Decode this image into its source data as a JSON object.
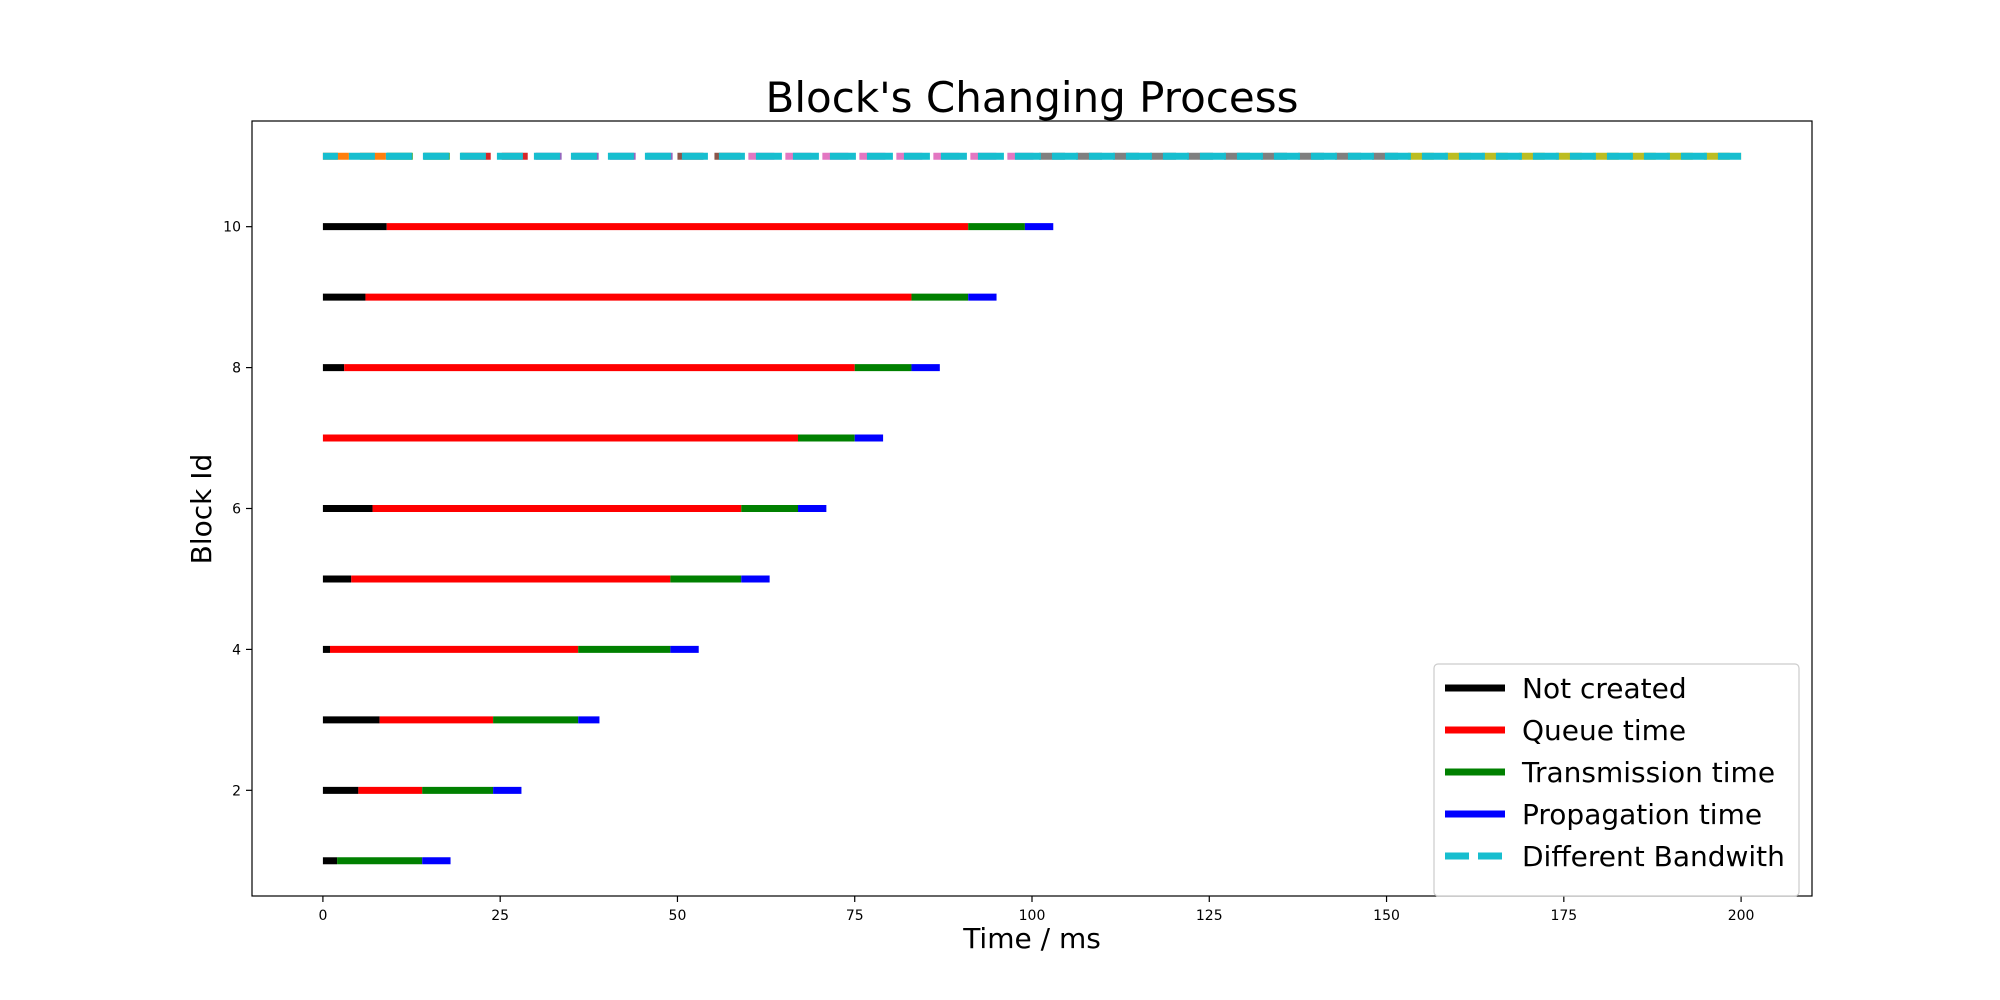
{
  "chart_data": {
    "type": "bar",
    "title": "Block's Changing Process",
    "xlabel": "Time / ms",
    "ylabel": "Block Id",
    "xlim": [
      -10,
      210
    ],
    "ylim": [
      0.5,
      11.5
    ],
    "xticks": [
      0,
      25,
      50,
      75,
      100,
      125,
      150,
      175,
      200
    ],
    "yticks": [
      2,
      4,
      6,
      8,
      10
    ],
    "grid": false,
    "legend_position": "lower-right",
    "colors": {
      "not_created": "#000000",
      "queue": "#ff0000",
      "transmission": "#008000",
      "propagation": "#0000ff",
      "bandwidth": "#17becf"
    },
    "legend": [
      {
        "key": "not_created",
        "label": "Not created",
        "style": "solid"
      },
      {
        "key": "queue",
        "label": "Queue time",
        "style": "solid"
      },
      {
        "key": "transmission",
        "label": "Transmission time",
        "style": "solid"
      },
      {
        "key": "propagation",
        "label": "Propagation time",
        "style": "solid"
      },
      {
        "key": "bandwidth",
        "label": "Different Bandwith",
        "style": "dashed"
      }
    ],
    "blocks": [
      {
        "id": 1,
        "not_created": [
          0,
          2
        ],
        "queue": [
          2,
          2
        ],
        "transmission": [
          2,
          14
        ],
        "propagation": [
          14,
          18
        ]
      },
      {
        "id": 2,
        "not_created": [
          0,
          5
        ],
        "queue": [
          5,
          14
        ],
        "transmission": [
          14,
          24
        ],
        "propagation": [
          24,
          28
        ]
      },
      {
        "id": 3,
        "not_created": [
          0,
          8
        ],
        "queue": [
          8,
          24
        ],
        "transmission": [
          24,
          36
        ],
        "propagation": [
          36,
          39
        ]
      },
      {
        "id": 4,
        "not_created": [
          0,
          1
        ],
        "queue": [
          1,
          36
        ],
        "transmission": [
          36,
          49
        ],
        "propagation": [
          49,
          53
        ]
      },
      {
        "id": 5,
        "not_created": [
          0,
          4
        ],
        "queue": [
          4,
          49
        ],
        "transmission": [
          49,
          59
        ],
        "propagation": [
          59,
          63
        ]
      },
      {
        "id": 6,
        "not_created": [
          0,
          7
        ],
        "queue": [
          7,
          59
        ],
        "transmission": [
          59,
          67
        ],
        "propagation": [
          67,
          71
        ]
      },
      {
        "id": 7,
        "not_created": [
          0,
          0
        ],
        "queue": [
          0,
          67
        ],
        "transmission": [
          67,
          75
        ],
        "propagation": [
          75,
          79
        ]
      },
      {
        "id": 8,
        "not_created": [
          0,
          3
        ],
        "queue": [
          3,
          75
        ],
        "transmission": [
          75,
          83
        ],
        "propagation": [
          83,
          87
        ]
      },
      {
        "id": 9,
        "not_created": [
          0,
          6
        ],
        "queue": [
          6,
          83
        ],
        "transmission": [
          83,
          91
        ],
        "propagation": [
          91,
          95
        ]
      },
      {
        "id": 10,
        "not_created": [
          0,
          9
        ],
        "queue": [
          9,
          91
        ],
        "transmission": [
          91,
          99
        ],
        "propagation": [
          99,
          103
        ]
      }
    ],
    "bandwidth_line": {
      "y": 11,
      "segments": [
        {
          "x": [
            0,
            9
          ],
          "color": "#ff7f0e"
        },
        {
          "x": [
            9,
            20
          ],
          "color": "#2ca02c"
        },
        {
          "x": [
            20,
            30
          ],
          "color": "#d62728"
        },
        {
          "x": [
            30,
            50
          ],
          "color": "#9467bd"
        },
        {
          "x": [
            50,
            60
          ],
          "color": "#8c564b"
        },
        {
          "x": [
            60,
            101
          ],
          "color": "#e377c2"
        },
        {
          "x": [
            101,
            153
          ],
          "color": "#7f7f7f"
        },
        {
          "x": [
            153,
            200
          ],
          "color": "#bcbd22"
        }
      ]
    }
  }
}
